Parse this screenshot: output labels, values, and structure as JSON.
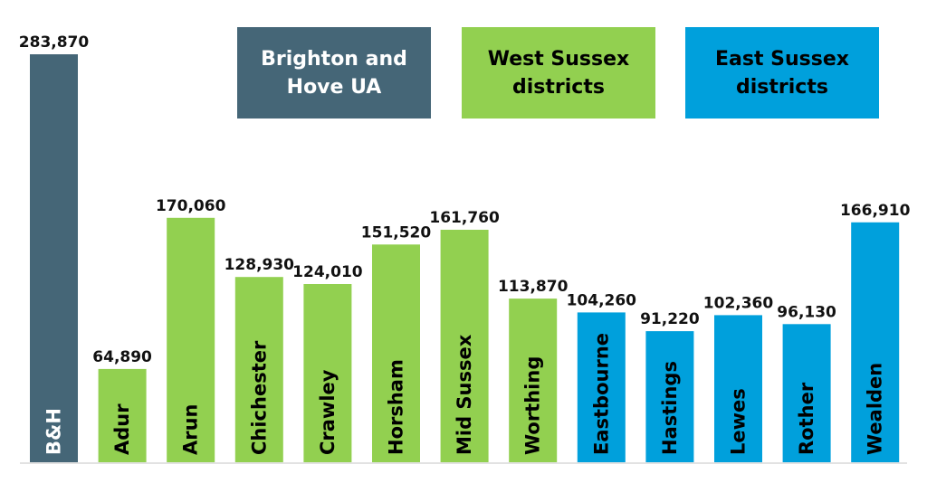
{
  "colors": {
    "bh": "#456677",
    "west": "#92d050",
    "east": "#00a0dc",
    "axis": "#d9d9d9"
  },
  "legend": [
    {
      "label": "Brighton and\nHove UA",
      "color": "#456677",
      "text_color": "#ffffff"
    },
    {
      "label": "West Sussex\ndistricts",
      "color": "#92d050",
      "text_color": "#000000"
    },
    {
      "label": "East Sussex\ndistricts",
      "color": "#00a0dc",
      "text_color": "#000000"
    }
  ],
  "chart_data": {
    "type": "bar",
    "title": "",
    "xlabel": "",
    "ylabel": "",
    "ylim": [
      0,
      300000
    ],
    "grid": false,
    "legend_position": "top",
    "categories": [
      "B&H",
      "Adur",
      "Arun",
      "Chichester",
      "Crawley",
      "Horsham",
      "Mid Sussex",
      "Worthing",
      "Eastbourne",
      "Hastings",
      "Lewes",
      "Rother",
      "Wealden"
    ],
    "values": [
      283870,
      64890,
      170060,
      128930,
      124010,
      151520,
      161760,
      113870,
      104260,
      91220,
      102360,
      96130,
      166910
    ],
    "value_labels": [
      "283,870",
      "64,890",
      "170,060",
      "128,930",
      "124,010",
      "151,520",
      "161,760",
      "113,870",
      "104,260",
      "91,220",
      "102,360",
      "96,130",
      "166,910"
    ],
    "groups": [
      "bh",
      "west",
      "west",
      "west",
      "west",
      "west",
      "west",
      "west",
      "east",
      "east",
      "east",
      "east",
      "east"
    ]
  }
}
